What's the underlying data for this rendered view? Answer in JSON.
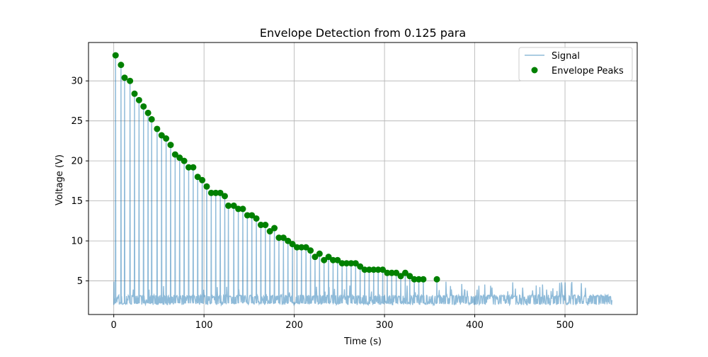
{
  "chart_data": {
    "type": "line",
    "title": "Envelope Detection from 0.125 para",
    "xlabel": "Time (s)",
    "ylabel": "Voltage (V)",
    "xlim": [
      -28,
      580
    ],
    "ylim": [
      0.8,
      34.8
    ],
    "x_ticks": [
      0,
      100,
      200,
      300,
      400,
      500
    ],
    "y_ticks": [
      5,
      10,
      15,
      20,
      25,
      30
    ],
    "grid": true,
    "legend_position": "upper right",
    "colors": {
      "signal": "#1f77b4",
      "peaks": "#008000"
    },
    "series": [
      {
        "name": "Signal",
        "kind": "line",
        "description_of_shape": "periodic spikes rising from a noisy baseline of about 2-3 V; spike tops follow the envelope peaks; after ~360 s only noise with small bursts up to ~5 V remains",
        "baseline_range": [
          2,
          3.3
        ],
        "x_end": 552
      },
      {
        "name": "Envelope Peaks",
        "kind": "scatter",
        "points": [
          [
            2,
            33.2
          ],
          [
            8,
            32.0
          ],
          [
            12,
            30.4
          ],
          [
            18,
            30.0
          ],
          [
            23,
            28.4
          ],
          [
            28,
            27.6
          ],
          [
            33,
            26.8
          ],
          [
            38,
            26.0
          ],
          [
            42,
            25.2
          ],
          [
            48,
            24.0
          ],
          [
            53,
            23.2
          ],
          [
            58,
            22.8
          ],
          [
            63,
            22.0
          ],
          [
            68,
            20.8
          ],
          [
            73,
            20.4
          ],
          [
            78,
            20.0
          ],
          [
            83,
            19.2
          ],
          [
            88,
            19.2
          ],
          [
            93,
            18.0
          ],
          [
            98,
            17.6
          ],
          [
            103,
            16.8
          ],
          [
            108,
            16.0
          ],
          [
            113,
            16.0
          ],
          [
            118,
            16.0
          ],
          [
            123,
            15.6
          ],
          [
            127,
            14.4
          ],
          [
            133,
            14.4
          ],
          [
            138,
            14.0
          ],
          [
            143,
            14.0
          ],
          [
            148,
            13.2
          ],
          [
            153,
            13.2
          ],
          [
            158,
            12.8
          ],
          [
            163,
            12.0
          ],
          [
            168,
            12.0
          ],
          [
            173,
            11.2
          ],
          [
            178,
            11.6
          ],
          [
            183,
            10.4
          ],
          [
            188,
            10.4
          ],
          [
            193,
            10.0
          ],
          [
            198,
            9.6
          ],
          [
            203,
            9.2
          ],
          [
            208,
            9.2
          ],
          [
            213,
            9.2
          ],
          [
            218,
            8.8
          ],
          [
            223,
            8.0
          ],
          [
            228,
            8.4
          ],
          [
            233,
            7.6
          ],
          [
            238,
            8.0
          ],
          [
            243,
            7.6
          ],
          [
            248,
            7.6
          ],
          [
            253,
            7.2
          ],
          [
            258,
            7.2
          ],
          [
            263,
            7.2
          ],
          [
            268,
            7.2
          ],
          [
            273,
            6.8
          ],
          [
            278,
            6.4
          ],
          [
            283,
            6.4
          ],
          [
            288,
            6.4
          ],
          [
            293,
            6.4
          ],
          [
            298,
            6.4
          ],
          [
            303,
            6.0
          ],
          [
            308,
            6.0
          ],
          [
            313,
            6.0
          ],
          [
            318,
            5.6
          ],
          [
            323,
            6.0
          ],
          [
            328,
            5.6
          ],
          [
            333,
            5.2
          ],
          [
            338,
            5.2
          ],
          [
            343,
            5.2
          ],
          [
            358,
            5.2
          ]
        ]
      }
    ]
  }
}
